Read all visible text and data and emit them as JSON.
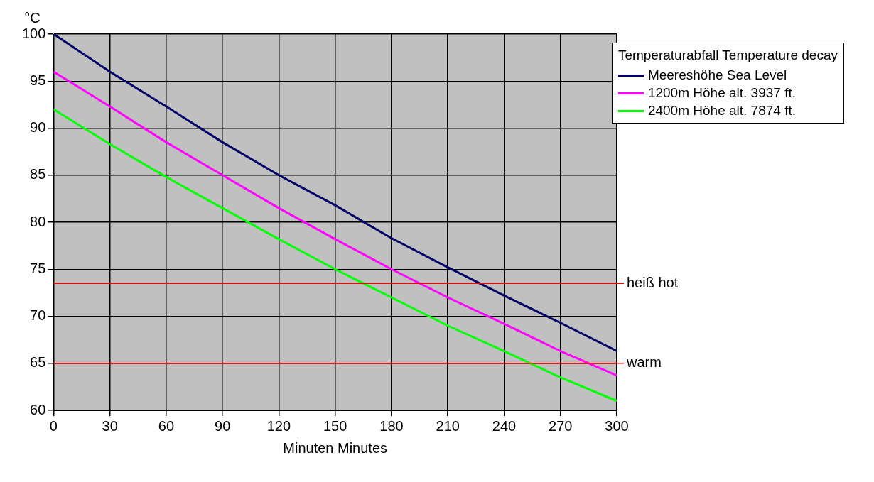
{
  "chart_data": {
    "type": "line",
    "legend_title": "Temperaturabfall Temperature decay",
    "xlabel": "Minuten Minutes",
    "ylabel": "°C",
    "x": [
      0,
      30,
      60,
      90,
      120,
      150,
      180,
      210,
      240,
      270,
      300
    ],
    "series": [
      {
        "name": "Meereshöhe Sea Level",
        "color": "#000066",
        "values": [
          100,
          96,
          92.3,
          88.5,
          85,
          81.8,
          78.3,
          75.2,
          72.2,
          69.3,
          66.3
        ]
      },
      {
        "name": "1200m Höhe alt. 3937 ft.",
        "color": "#ff00ff",
        "values": [
          96,
          92.3,
          88.5,
          85,
          81.5,
          78.2,
          75,
          72,
          69.2,
          66.3,
          63.7
        ]
      },
      {
        "name": "2400m Höhe alt. 7874 ft.",
        "color": "#00ff00",
        "values": [
          92,
          88.3,
          84.8,
          81.5,
          78.2,
          75,
          72,
          69,
          66.3,
          63.5,
          61
        ]
      }
    ],
    "xlim": [
      0,
      300
    ],
    "xticks": [
      0,
      30,
      60,
      90,
      120,
      150,
      180,
      210,
      240,
      270,
      300
    ],
    "ylim": [
      60,
      100
    ],
    "yticks": [
      60,
      65,
      70,
      75,
      80,
      85,
      90,
      95,
      100
    ],
    "ref_lines": [
      {
        "axis": "y",
        "value": 73.5,
        "label": "heiß hot",
        "color": "#ff0000"
      },
      {
        "axis": "y",
        "value": 65,
        "label": "warm",
        "color": "#ff0000"
      }
    ],
    "grid": true,
    "legend": "top right",
    "marker": "none",
    "line_style": "solid"
  }
}
